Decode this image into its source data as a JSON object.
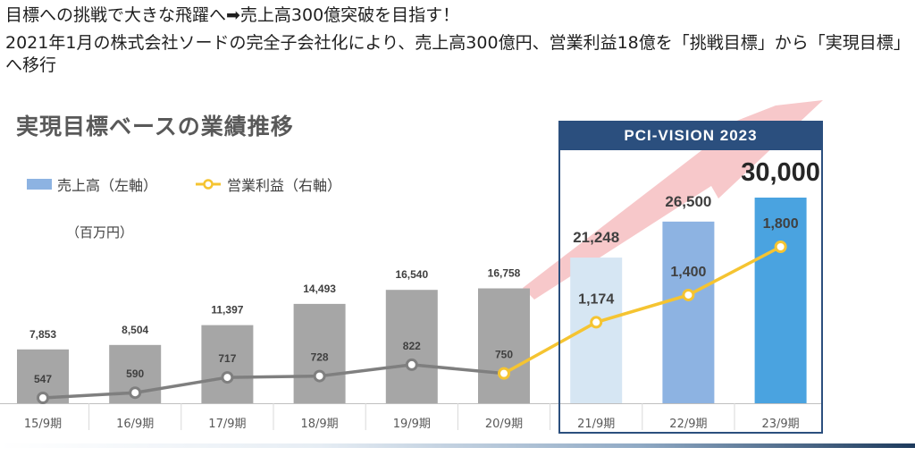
{
  "header": {
    "headline": "目標への挑戦で大きな飛躍へ➡売上高300億突破を目指す！",
    "subline": "2021年1月の株式会社ソードの完全子会社化により、売上高300億円、営業利益18億を「挑戦目標」から「実現目標」へ移行"
  },
  "chart_title": "実現目標ベースの業績推移",
  "unit_label": "（百万円）",
  "vision_label": "PCI-VISION  2023",
  "colors": {
    "actual_bar": "#a6a6a6",
    "bar_21": "#d6e6f3",
    "bar_22": "#8db3e2",
    "bar_23": "#4aa3e0",
    "actual_line": "#7f7f7f",
    "target_line": "#f5c431",
    "vision_border": "#2b4f7e",
    "arrow": "#f4b6b8"
  },
  "chart_data": {
    "type": "bar",
    "categories": [
      "15/9期",
      "16/9期",
      "17/9期",
      "18/9期",
      "19/9期",
      "20/9期",
      "21/9期",
      "22/9期",
      "23/9期"
    ],
    "series": [
      {
        "name": "売上高（左軸）",
        "type": "bar",
        "axis": "left",
        "values": [
          7853,
          8504,
          11397,
          14493,
          16540,
          16758,
          21248,
          26500,
          30000
        ],
        "labels": [
          "7,853",
          "8,504",
          "11,397",
          "14,493",
          "16,540",
          "16,758",
          "21,248",
          "26,500",
          "30,000"
        ]
      },
      {
        "name": "営業利益（右軸）",
        "type": "line",
        "axis": "right",
        "values": [
          547,
          590,
          717,
          728,
          822,
          750,
          1174,
          1400,
          1800
        ],
        "labels": [
          "547",
          "590",
          "717",
          "728",
          "822",
          "750",
          "1,174",
          "1,400",
          "1,800"
        ]
      }
    ],
    "actual_periods": 6,
    "target_periods": 3,
    "legend_position": "top-left",
    "grid": false
  }
}
